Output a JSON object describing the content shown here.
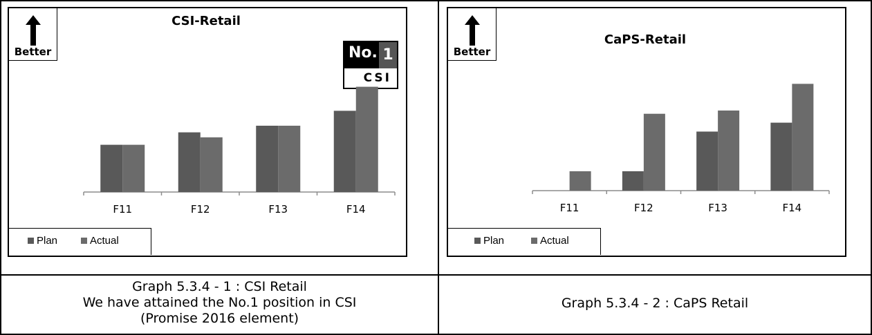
{
  "charts": [
    {
      "title": "CSI-Retail",
      "better_label": "Better",
      "badge": {
        "no_label": "No.",
        "rank": "1",
        "metric": "CSI"
      },
      "legend": [
        "Plan",
        "Actual"
      ],
      "caption_lines": [
        "Graph 5.3.4 - 1 : CSI Retail",
        "We have attained the No.1 position in CSI",
        "(Promise 2016 element)"
      ]
    },
    {
      "title": "CaPS-Retail",
      "better_label": "Better",
      "legend": [
        "Plan",
        "Actual"
      ],
      "caption_lines": [
        "Graph 5.3.4 - 2 : CaPS Retail"
      ]
    }
  ],
  "colors": {
    "plan": "#595959",
    "actual": "#6b6b6b",
    "axis": "#8c8c8c",
    "border": "#000000"
  },
  "chart_data": [
    {
      "type": "bar",
      "title": "CSI-Retail",
      "categories": [
        "F11",
        "F12",
        "F13",
        "F14"
      ],
      "series": [
        {
          "name": "Plan",
          "values": [
            57,
            72,
            80,
            98
          ]
        },
        {
          "name": "Actual",
          "values": [
            57,
            66,
            80,
            127
          ]
        }
      ],
      "ylim": [
        0,
        140
      ],
      "grid": false,
      "legend_position": "bottom-left",
      "xlabel": "",
      "ylabel": ""
    },
    {
      "type": "bar",
      "title": "CaPS-Retail",
      "categories": [
        "F11",
        "F12",
        "F13",
        "F14"
      ],
      "series": [
        {
          "name": "Plan",
          "values": [
            0,
            24,
            73,
            84
          ]
        },
        {
          "name": "Actual",
          "values": [
            24,
            95,
            99,
            132
          ]
        }
      ],
      "ylim": [
        0,
        140
      ],
      "grid": false,
      "legend_position": "bottom-left",
      "xlabel": "",
      "ylabel": ""
    }
  ]
}
